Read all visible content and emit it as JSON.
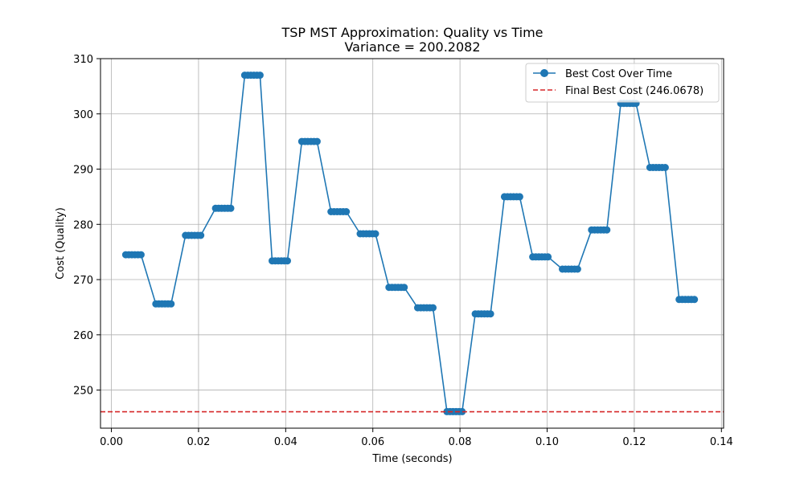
{
  "chart_data": {
    "type": "line",
    "title": "TSP MST Approximation: Quality vs Time",
    "subtitle": "Variance = 200.2082",
    "xlabel": "Time (seconds)",
    "ylabel": "Cost (Quality)",
    "xlim": [
      -0.0025,
      0.1405
    ],
    "ylim": [
      243.1,
      310.0
    ],
    "xticks": [
      0.0,
      0.02,
      0.04,
      0.06,
      0.08,
      0.1,
      0.12,
      0.14
    ],
    "xtick_labels": [
      "0.00",
      "0.02",
      "0.04",
      "0.06",
      "0.08",
      "0.10",
      "0.12",
      "0.14"
    ],
    "yticks": [
      250,
      260,
      270,
      280,
      290,
      300,
      310
    ],
    "ytick_labels": [
      "250",
      "260",
      "270",
      "280",
      "290",
      "300",
      "310"
    ],
    "grid": true,
    "legend_position": "top-right",
    "series": [
      {
        "name": "Best Cost Over Time",
        "color": "#1f77b4",
        "style": "solid-with-markers",
        "x": [
          0.0033,
          0.004,
          0.0047,
          0.0054,
          0.0061,
          0.0068,
          0.0102,
          0.0109,
          0.0116,
          0.0123,
          0.013,
          0.0137,
          0.017,
          0.0177,
          0.0184,
          0.0191,
          0.0198,
          0.0205,
          0.0239,
          0.0246,
          0.0253,
          0.026,
          0.0267,
          0.0274,
          0.0306,
          0.0313,
          0.032,
          0.0327,
          0.0334,
          0.0341,
          0.0369,
          0.0376,
          0.0383,
          0.039,
          0.0397,
          0.0404,
          0.0437,
          0.0444,
          0.0451,
          0.0458,
          0.0465,
          0.0472,
          0.0504,
          0.0511,
          0.0518,
          0.0525,
          0.0532,
          0.0539,
          0.0571,
          0.0578,
          0.0585,
          0.0592,
          0.0599,
          0.0606,
          0.0637,
          0.0644,
          0.0651,
          0.0658,
          0.0665,
          0.0672,
          0.0703,
          0.071,
          0.0717,
          0.0724,
          0.0731,
          0.0738,
          0.077,
          0.0777,
          0.0784,
          0.0791,
          0.0798,
          0.0805,
          0.0835,
          0.0842,
          0.0849,
          0.0856,
          0.0863,
          0.087,
          0.0902,
          0.0909,
          0.0916,
          0.0923,
          0.093,
          0.0937,
          0.0967,
          0.0974,
          0.0981,
          0.0988,
          0.0995,
          0.1002,
          0.1035,
          0.1042,
          0.1049,
          0.1056,
          0.1063,
          0.107,
          0.1102,
          0.1109,
          0.1116,
          0.1123,
          0.113,
          0.1137,
          0.1169,
          0.1176,
          0.1183,
          0.119,
          0.1197,
          0.1204,
          0.1236,
          0.1243,
          0.125,
          0.1257,
          0.1264,
          0.1271,
          0.1303,
          0.131,
          0.1317,
          0.1324,
          0.1331,
          0.1338
        ],
        "y": [
          274.5,
          274.5,
          274.5,
          274.5,
          274.5,
          274.5,
          265.6,
          265.6,
          265.6,
          265.6,
          265.6,
          265.6,
          278.0,
          278.0,
          278.0,
          278.0,
          278.0,
          278.0,
          282.9,
          282.9,
          282.9,
          282.9,
          282.9,
          282.9,
          307.0,
          307.0,
          307.0,
          307.0,
          307.0,
          307.0,
          273.4,
          273.4,
          273.4,
          273.4,
          273.4,
          273.4,
          295.0,
          295.0,
          295.0,
          295.0,
          295.0,
          295.0,
          282.3,
          282.3,
          282.3,
          282.3,
          282.3,
          282.3,
          278.3,
          278.3,
          278.3,
          278.3,
          278.3,
          278.3,
          268.6,
          268.6,
          268.6,
          268.6,
          268.6,
          268.6,
          264.9,
          264.9,
          264.9,
          264.9,
          264.9,
          264.9,
          246.1,
          246.1,
          246.1,
          246.1,
          246.1,
          246.1,
          263.8,
          263.8,
          263.8,
          263.8,
          263.8,
          263.8,
          285.0,
          285.0,
          285.0,
          285.0,
          285.0,
          285.0,
          274.1,
          274.1,
          274.1,
          274.1,
          274.1,
          274.1,
          271.9,
          271.9,
          271.9,
          271.9,
          271.9,
          271.9,
          279.0,
          279.0,
          279.0,
          279.0,
          279.0,
          279.0,
          301.9,
          301.9,
          301.9,
          301.9,
          301.9,
          301.9,
          290.3,
          290.3,
          290.3,
          290.3,
          290.3,
          290.3,
          266.4,
          266.4,
          266.4,
          266.4,
          266.4,
          266.4
        ]
      },
      {
        "name": "Final Best Cost (246.0678)",
        "color": "#d62728",
        "style": "dashed-horizontal",
        "y": 246.0678
      }
    ]
  }
}
